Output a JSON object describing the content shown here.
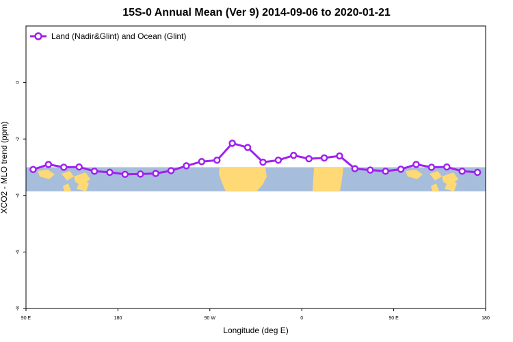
{
  "chart_data": {
    "type": "line",
    "title": "15S-0 Annual Mean (Ver 9)   2014-09-06 to 2020-01-21",
    "xlabel": "Longitude (deg E)",
    "ylabel": "XCO2 - MLO trend (ppm)",
    "ylim": [
      -8,
      2
    ],
    "xlim": [
      90,
      540
    ],
    "y_ticks": [
      0,
      -2,
      -4,
      -6,
      -8
    ],
    "x_ticks": [
      {
        "value": 90,
        "label": "90 E"
      },
      {
        "value": 180,
        "label": "180"
      },
      {
        "value": 270,
        "label": "90 W"
      },
      {
        "value": 360,
        "label": "0"
      },
      {
        "value": 450,
        "label": "90 E"
      },
      {
        "value": 540,
        "label": "180"
      }
    ],
    "legend_position": "top-left",
    "series": [
      {
        "name": "Land (Nadir&Glint) and Ocean (Glint)",
        "color": "#a020f0",
        "x": [
          97,
          112,
          127,
          142,
          157,
          172,
          187,
          202,
          217,
          232,
          247,
          262,
          277,
          292,
          307,
          322,
          337,
          352,
          367,
          382,
          397,
          412,
          427,
          442,
          457,
          472,
          487,
          502,
          517,
          532
        ],
        "y": [
          -3.08,
          -2.9,
          -3.0,
          -2.99,
          -3.14,
          -3.18,
          -3.25,
          -3.24,
          -3.22,
          -3.12,
          -2.95,
          -2.8,
          -2.75,
          -2.15,
          -2.3,
          -2.82,
          -2.75,
          -2.58,
          -2.7,
          -2.67,
          -2.6,
          -3.05,
          -3.1,
          -3.14,
          -3.07,
          -2.9,
          -3.0,
          -2.99,
          -3.14,
          -3.18
        ]
      }
    ],
    "background_map": {
      "band_ylim": [
        -3.85,
        -3.0
      ],
      "ocean_color": "#a6bddb",
      "land_color": "#fed976"
    }
  }
}
